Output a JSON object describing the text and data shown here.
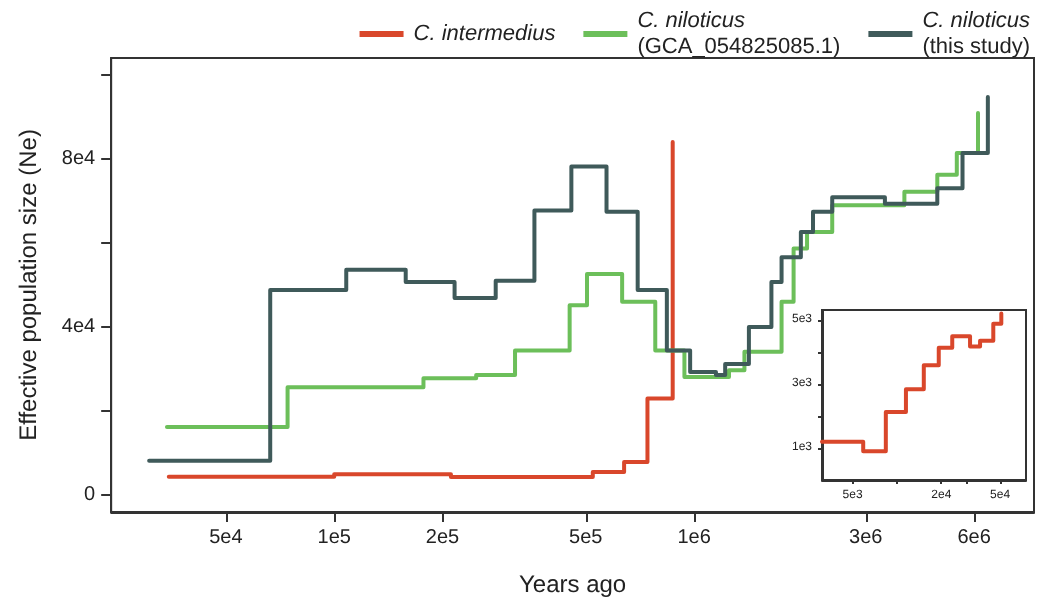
{
  "chart_data": [
    {
      "type": "step",
      "xlabel": "Years ago",
      "ylabel": "Effective population size (Ne)",
      "log": "x",
      "legend": "top right",
      "xlim": [
        24000,
        8800000
      ],
      "xticks": [
        {
          "value": 50000,
          "label": "5e4"
        },
        {
          "value": 100000,
          "label": "1e5"
        },
        {
          "value": 200000,
          "label": "2e5"
        },
        {
          "value": 500000,
          "label": "5e5"
        },
        {
          "value": 1000000,
          "label": "1e6"
        },
        {
          "value": 3000000,
          "label": "3e6"
        },
        {
          "value": 6000000,
          "label": "6e6"
        }
      ],
      "ylim": [
        -4000,
        104000
      ],
      "yticks": [
        0,
        {
          "value": 20000,
          "label": null
        },
        {
          "value": 40000,
          "label": "4e4"
        },
        {
          "value": 60000,
          "label": null
        },
        {
          "value": 80000,
          "label": "8e4"
        },
        {
          "value": 100000,
          "label": null
        }
      ],
      "series": [
        {
          "name": "C. intermedius",
          "color": "#d9472b",
          "x": [
            34700,
            100000,
            211000,
            523000,
            639000,
            742000,
            872000
          ],
          "values": [
            4400,
            5000,
            4300,
            5500,
            7900,
            23000,
            84000
          ]
        },
        {
          "name": "C. niloticus\n(GCA_054825085.1)",
          "color": "#6cbf5a",
          "x": [
            34300,
            74200,
            177000,
            248000,
            318000,
            451000,
            504000,
            631000,
            780000,
            940000,
            1250000,
            1380000,
            1750000,
            1890000,
            2060000,
            2420000,
            3840000,
            4740000,
            5370000,
            6150000
          ],
          "values": [
            16200,
            25700,
            27800,
            28600,
            34400,
            45200,
            52600,
            46000,
            34400,
            28100,
            29700,
            34100,
            46000,
            58700,
            62600,
            69000,
            72200,
            76200,
            81400,
            90900
          ]
        },
        {
          "name": "C. niloticus\n(this study)",
          "color": "#3f5a5a",
          "x": [
            30600,
            66400,
            108000,
            158000,
            216000,
            281000,
            360000,
            456000,
            571000,
            697000,
            840000,
            975000,
            1150000,
            1220000,
            1420000,
            1640000,
            1750000,
            1980000,
            2140000,
            2420000,
            3390000,
            4740000,
            5570000,
            6550000
          ],
          "values": [
            8200,
            48800,
            53600,
            50700,
            46900,
            51000,
            67700,
            78200,
            67400,
            48800,
            34400,
            29300,
            28600,
            31200,
            40000,
            50700,
            56600,
            62600,
            67400,
            70900,
            69300,
            73000,
            81400,
            94700
          ]
        }
      ]
    },
    {
      "type": "step",
      "log": "x",
      "color": "#d9472b",
      "x": [
        3100,
        5900,
        8400,
        11500,
        15200,
        19200,
        23700,
        31300,
        36600,
        45000,
        51000
      ],
      "values": [
        1190,
        900,
        2120,
        2830,
        3580,
        4120,
        4480,
        4160,
        4340,
        4870,
        5190
      ],
      "xlim": [
        3100,
        75000
      ],
      "xticks": [
        {
          "value": 5000,
          "label": "5e3"
        },
        {
          "value": 10000,
          "label": null
        },
        {
          "value": 20000,
          "label": "2e4"
        },
        {
          "value": 30000,
          "label": null
        },
        {
          "value": 50000,
          "label": "5e4"
        }
      ],
      "ylim": [
        0,
        5300
      ],
      "yticks": [
        {
          "value": 1000,
          "label": "1e3"
        },
        {
          "value": 2000,
          "label": null
        },
        {
          "value": 3000,
          "label": "3e3"
        },
        {
          "value": 4000,
          "label": null
        },
        {
          "value": 5000,
          "label": "5e3"
        }
      ]
    }
  ]
}
